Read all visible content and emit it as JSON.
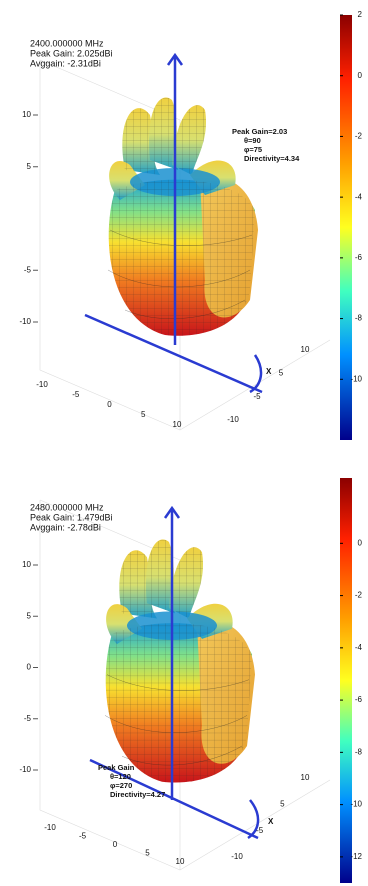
{
  "chart_data": [
    {
      "type": "radiation-pattern-3d",
      "info": [
        "2400.000000 MHz",
        "Peak Gain: 2.025dBi",
        "Avggain: -2.31dBi"
      ],
      "annotation": [
        "Peak Gain=2.03",
        "θ=90",
        "φ=75",
        "Directivity=4.34"
      ],
      "zticks": [
        10,
        5,
        -5,
        -10
      ],
      "zlim": [
        -10,
        10
      ],
      "yticks": [
        -10,
        -5,
        0,
        5,
        10
      ],
      "xticks": [
        10,
        5,
        -5,
        -10
      ],
      "xlabel": "X",
      "clim": [
        -12,
        2
      ],
      "cticks": [
        2,
        0,
        -2,
        -4,
        -6,
        -8,
        -10
      ]
    },
    {
      "type": "radiation-pattern-3d",
      "info": [
        "2480.000000 MHz",
        "Peak Gain: 1.479dBi",
        "Avggain: -2.78dBi"
      ],
      "annotation": [
        "Peak Gain",
        "θ=120",
        "φ=270",
        "Directivity=4.27"
      ],
      "zticks": [
        10,
        5,
        0,
        -5,
        -10
      ],
      "zlim": [
        -10,
        10
      ],
      "yticks": [
        -10,
        -5,
        0,
        5,
        10
      ],
      "xticks": [
        10,
        5,
        -5,
        -10
      ],
      "xlabel": "X",
      "clim": [
        -13,
        2.5
      ],
      "cticks": [
        0,
        -2,
        -4,
        -6,
        -8,
        -10,
        -12
      ]
    }
  ]
}
